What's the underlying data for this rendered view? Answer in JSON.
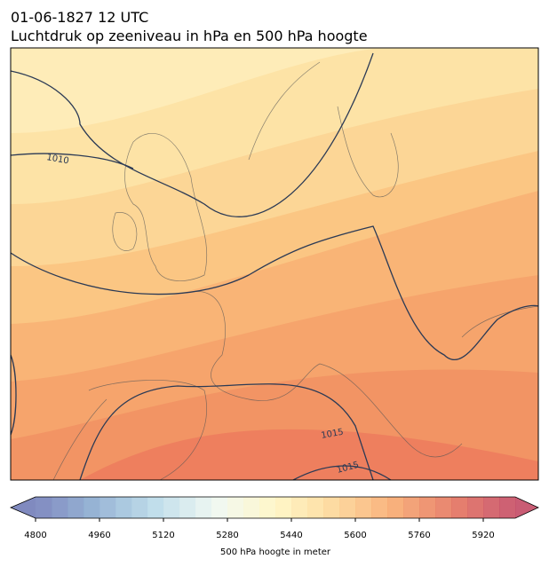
{
  "title": "01-06-1827 12 UTC",
  "subtitle": "Luchtdruk op zeeniveau in hPa en 500 hPa hoogte",
  "isobar_labels": [
    "1010",
    "1015",
    "1015"
  ],
  "colorbar": {
    "label": "500 hPa hoogte in meter",
    "lim": [
      4800,
      6000
    ],
    "step": 40,
    "ticks": [
      4800,
      4960,
      5120,
      5280,
      5440,
      5600,
      5760,
      5920
    ],
    "colors": [
      "#6a76b4",
      "#86a9cf",
      "#b6d8e8",
      "#eef7f0",
      "#fff6c0",
      "#fdd38f",
      "#f7a265",
      "#e26a55",
      "#c03f5c"
    ]
  }
}
